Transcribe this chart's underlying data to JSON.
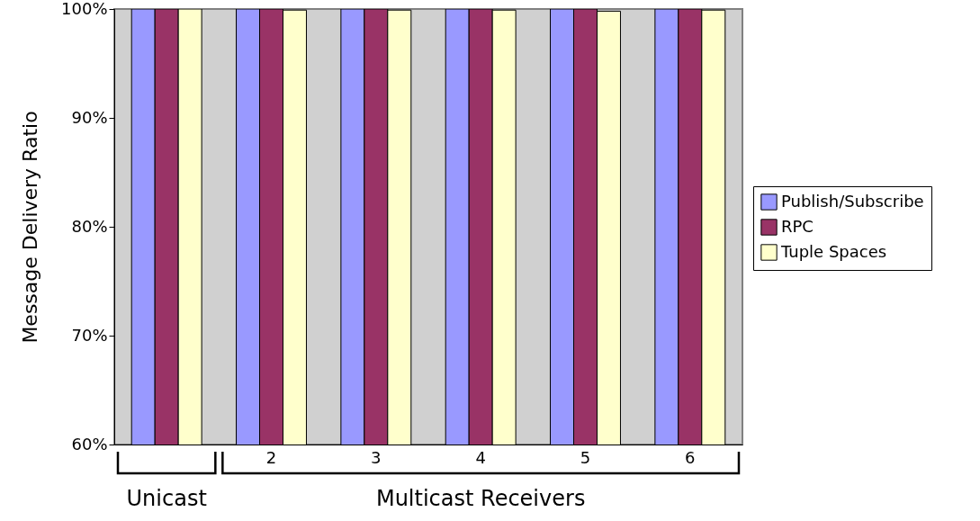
{
  "chart_data": {
    "type": "bar",
    "ylabel": "Message Delivery Ratio",
    "categories": [
      null,
      "2",
      "3",
      "4",
      "5",
      "6"
    ],
    "series": [
      {
        "name": "Publish/Subscribe",
        "color": "#9999ff",
        "values": [
          100,
          100,
          100,
          100,
          100,
          100
        ]
      },
      {
        "name": "RPC",
        "color": "#993366",
        "values": [
          100,
          100,
          100,
          100,
          100,
          100
        ]
      },
      {
        "name": "Tuple Spaces",
        "color": "#ffffcc",
        "values": [
          100,
          99.9,
          99.9,
          99.9,
          99.8,
          99.9
        ]
      }
    ],
    "ylim": [
      60,
      100
    ],
    "yticks": [
      {
        "value": 60,
        "label": "60%"
      },
      {
        "value": 70,
        "label": "70%"
      },
      {
        "value": 80,
        "label": "80%"
      },
      {
        "value": 90,
        "label": "90%"
      },
      {
        "value": 100,
        "label": "100%"
      }
    ],
    "grid": false,
    "legend": "right",
    "annotations": [
      "Unicast",
      "Multicast Receivers"
    ]
  }
}
